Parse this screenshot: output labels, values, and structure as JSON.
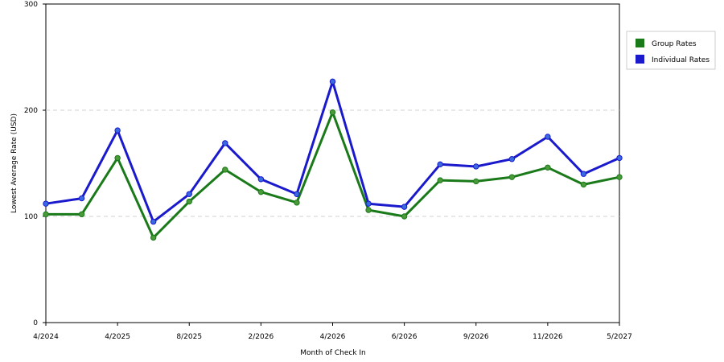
{
  "chart_data": {
    "type": "line",
    "title": "",
    "xlabel": "Month of Check In",
    "ylabel": "Lowest Average Rate (USD)",
    "ylim": [
      0,
      300
    ],
    "yticks": [
      0,
      100,
      200,
      300
    ],
    "x_tick_labels": [
      "4/2024",
      "4/2025",
      "8/2025",
      "2/2026",
      "4/2026",
      "6/2026",
      "9/2026",
      "11/2026",
      "5/2027"
    ],
    "grid": "horizontal dashed",
    "legend_position": "right",
    "series": [
      {
        "name": "Group Rates",
        "color": "#1a7a1a",
        "marker_color": "#4a9a3a",
        "values": [
          102,
          102,
          155,
          80,
          114,
          144,
          123,
          113,
          198,
          106,
          100,
          134,
          133,
          137,
          146,
          130,
          137
        ]
      },
      {
        "name": "Individual Rates",
        "color": "#1a1acc",
        "marker_color": "#3a6ae0",
        "values": [
          112,
          117,
          181,
          95,
          121,
          169,
          135,
          121,
          227,
          112,
          109,
          149,
          147,
          154,
          175,
          140,
          155
        ]
      }
    ]
  }
}
